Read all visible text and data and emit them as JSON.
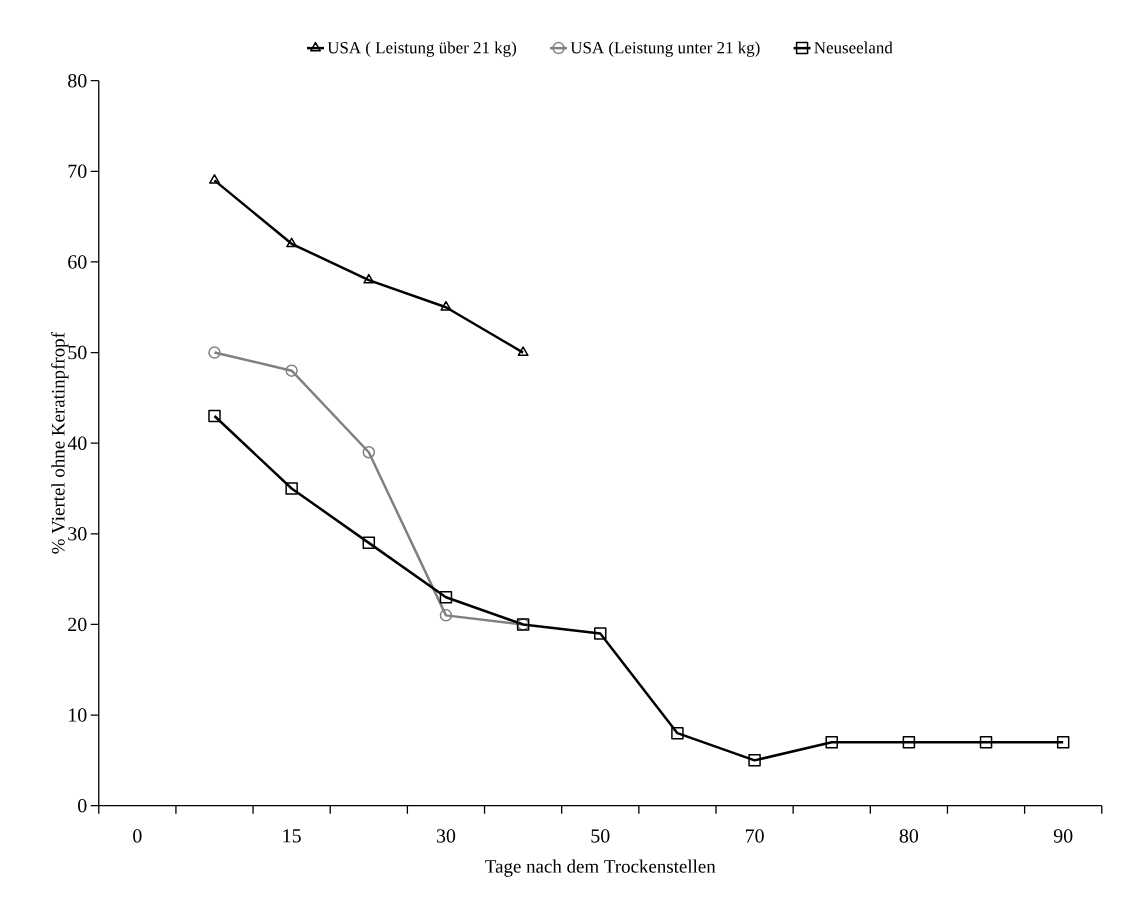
{
  "chart_data": {
    "type": "line",
    "xlabel": "Tage nach dem Trockenstellen",
    "ylabel": "% Viertel ohne Keratinpfropf",
    "categories": [
      "0",
      null,
      "15",
      null,
      "30",
      null,
      "50",
      null,
      "70",
      null,
      "80",
      null,
      "90"
    ],
    "series": [
      {
        "name": "USA ( Leistung über 21 kg)",
        "color": "#000000",
        "marker": "triangle",
        "values": [
          null,
          69,
          62,
          58,
          55,
          50,
          null,
          null,
          null,
          null,
          null,
          null,
          null
        ]
      },
      {
        "name": "USA (Leistung unter 21 kg)",
        "color": "#808080",
        "marker": "circle",
        "values": [
          null,
          50,
          48,
          39,
          21,
          20,
          null,
          null,
          null,
          null,
          null,
          null,
          null
        ]
      },
      {
        "name": "Neuseeland",
        "color": "#000000",
        "marker": "square",
        "values": [
          null,
          43,
          35,
          29,
          23,
          20,
          19,
          8,
          5,
          7,
          7,
          7,
          7
        ]
      }
    ],
    "ylim": [
      0,
      80
    ],
    "yticks": [
      0,
      10,
      20,
      30,
      40,
      50,
      60,
      70,
      80
    ],
    "grid": false,
    "legend": "top",
    "line_style": "solid"
  }
}
